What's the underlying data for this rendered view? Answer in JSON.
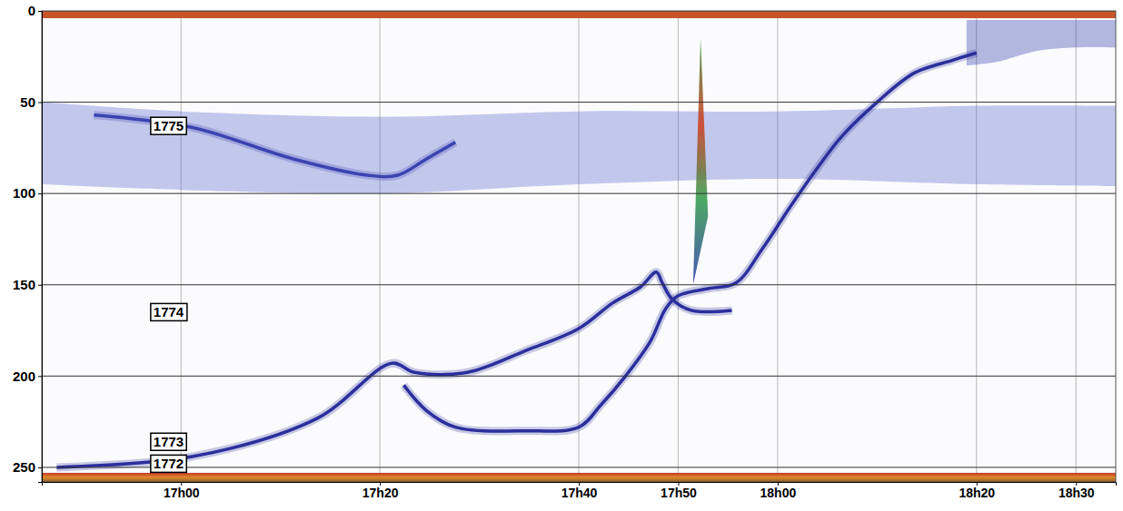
{
  "chart_data": {
    "type": "echogram",
    "xlim": [
      -14,
      94
    ],
    "ylim": [
      0,
      258
    ],
    "xticks": [
      {
        "value": 0,
        "label": "17h00"
      },
      {
        "value": 20,
        "label": "17h20"
      },
      {
        "value": 40,
        "label": "17h40"
      },
      {
        "value": 50,
        "label": "17h50"
      },
      {
        "value": 60,
        "label": "18h00"
      },
      {
        "value": 80,
        "label": "18h20"
      },
      {
        "value": 90,
        "label": "18h30"
      }
    ],
    "yticks": [
      0,
      50,
      100,
      150,
      200,
      250
    ],
    "grid": true,
    "surface_depth": 4,
    "seabed_depth": 253,
    "layers": [
      {
        "x": [
          -14,
          0,
          20,
          40,
          60,
          80,
          94
        ],
        "top": [
          50,
          55,
          58,
          55,
          55,
          52,
          52
        ],
        "bottom": [
          95,
          98,
          100,
          95,
          92,
          95,
          96
        ],
        "color": "#5a66cc"
      },
      {
        "x": [
          79,
          82,
          86,
          90,
          94
        ],
        "top": [
          5,
          5,
          5,
          5,
          5
        ],
        "bottom": [
          30,
          28,
          22,
          20,
          20
        ],
        "color": "#2a3aa8"
      }
    ],
    "spike": {
      "x": [
        51.5,
        53.0
      ],
      "top": 15,
      "bottom": 150
    },
    "series": [
      {
        "color": "#2b2f9c",
        "x": [
          -12.5,
          1.25,
          13.75,
          21.2,
          23.5,
          28.8,
          34.7,
          40,
          43.4,
          46.25,
          47.8,
          48.4,
          49.4,
          51.3,
          55.4
        ],
        "values": [
          250,
          244,
          223,
          193,
          198,
          198,
          186,
          174,
          160,
          151,
          143,
          149,
          158,
          164,
          164
        ]
      },
      {
        "color": "#2b2f9c",
        "x": [
          22.4,
          24.7,
          27.6,
          34.7,
          40,
          42.2,
          44.7,
          47.2,
          48.75,
          50,
          53.1,
          55.8,
          58.5,
          61.3,
          64,
          66.4,
          70,
          73.75,
          77.6,
          80
        ],
        "values": [
          205,
          219,
          228,
          230,
          228,
          216,
          200,
          181,
          163,
          156,
          152,
          149,
          130,
          107,
          86,
          69,
          50,
          34,
          27,
          23
        ]
      },
      {
        "color": "#3a44b0",
        "x": [
          -8.75,
          1.25,
          11.25,
          18.75,
          21.8,
          24.7,
          27.6
        ],
        "values": [
          57,
          64,
          81,
          90,
          90,
          81,
          72
        ]
      }
    ],
    "annotations": [
      {
        "text": "1775",
        "x": -1.25,
        "y": 63
      },
      {
        "text": "1774",
        "x": -1.25,
        "y": 165
      },
      {
        "text": "1773",
        "x": -1.25,
        "y": 236
      },
      {
        "text": "1772",
        "x": -1.25,
        "y": 248
      }
    ]
  }
}
